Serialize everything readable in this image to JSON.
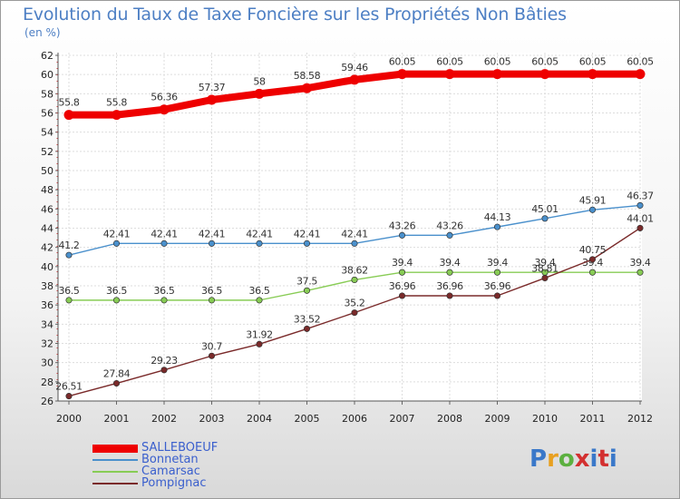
{
  "title": "Evolution du Taux de Taxe Foncière sur les Propriétés Non Bâties",
  "unit_label": "(en %)",
  "logo": {
    "text": "Proxiti",
    "colors": [
      "#3a78c9",
      "#e8a020",
      "#5cb040",
      "#d33030",
      "#3a78c9",
      "#d33030",
      "#3a78c9"
    ]
  },
  "chart_data": {
    "type": "line",
    "title": "Evolution du Taux de Taxe Foncière sur les Propriétés Non Bâties",
    "ylabel": "(en %)",
    "xlabel": "",
    "ylim": [
      26,
      62
    ],
    "yticks": [
      26,
      28,
      30,
      32,
      34,
      36,
      38,
      40,
      42,
      44,
      46,
      48,
      50,
      52,
      54,
      56,
      58,
      60,
      62
    ],
    "categories": [
      "2000",
      "2001",
      "2002",
      "2003",
      "2004",
      "2005",
      "2006",
      "2007",
      "2008",
      "2009",
      "2010",
      "2011",
      "2012"
    ],
    "grid": true,
    "legend_position": "bottom-left",
    "series": [
      {
        "name": "SALLEBOEUF",
        "color": "#ee0000",
        "values": [
          55.8,
          55.8,
          56.36,
          57.37,
          58,
          58.58,
          59.46,
          60.05,
          60.05,
          60.05,
          60.05,
          60.05,
          60.05
        ],
        "labels": [
          "55.8",
          "55.8",
          "56.36",
          "57.37",
          "58",
          "58.58",
          "59.46",
          "60.05",
          "60.05",
          "60.05",
          "60.05",
          "60.05",
          "60.05"
        ]
      },
      {
        "name": "Bonnetan",
        "color": "#4a90cc",
        "values": [
          41.2,
          42.41,
          42.41,
          42.41,
          42.41,
          42.41,
          42.41,
          43.26,
          43.26,
          44.13,
          45.01,
          45.91,
          46.37
        ],
        "labels": [
          "41.2",
          "42.41",
          "42.41",
          "42.41",
          "42.41",
          "42.41",
          "42.41",
          "43.26",
          "43.26",
          "44.13",
          "45.01",
          "45.91",
          "46.37"
        ]
      },
      {
        "name": "Camarsac",
        "color": "#88cc55",
        "values": [
          36.5,
          36.5,
          36.5,
          36.5,
          36.5,
          37.5,
          38.62,
          39.4,
          39.4,
          39.4,
          39.4,
          39.4,
          39.4
        ],
        "labels": [
          "36.5",
          "36.5",
          "36.5",
          "36.5",
          "36.5",
          "37.5",
          "38.62",
          "39.4",
          "39.4",
          "39.4",
          "39.4",
          "39.4",
          "39.4"
        ]
      },
      {
        "name": "Pompignac",
        "color": "#7a2a2a",
        "values": [
          26.51,
          27.84,
          29.23,
          30.7,
          31.92,
          33.52,
          35.2,
          36.96,
          36.96,
          36.96,
          38.81,
          40.75,
          44.01
        ],
        "labels": [
          "26.51",
          "27.84",
          "29.23",
          "30.7",
          "31.92",
          "33.52",
          "35.2",
          "36.96",
          "36.96",
          "36.96",
          "38.81",
          "40.75",
          "44.01"
        ]
      }
    ]
  }
}
